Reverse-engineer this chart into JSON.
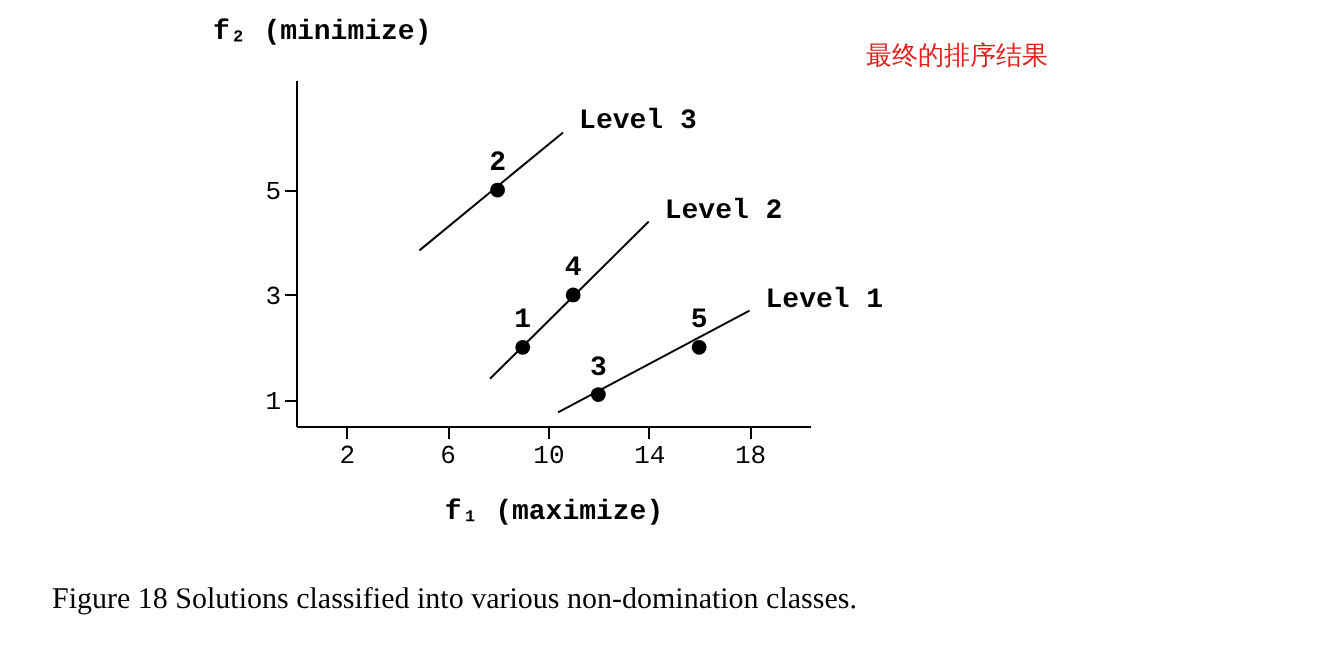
{
  "chart_data": {
    "type": "scatter",
    "title": "Figure 18   Solutions classified into various non-domination classes.",
    "xlabel": "f₁ (maximize)",
    "ylabel": "f₂ (minimize)",
    "xlim": [
      0,
      20.4
    ],
    "ylim": [
      0.5,
      7.1
    ],
    "xticks": [
      2,
      6,
      10,
      14,
      18
    ],
    "yticks": [
      1,
      3,
      5
    ],
    "grid": false,
    "marker": "circle",
    "line_style": "solid",
    "series": [
      {
        "color": "#000000",
        "x": [
          9,
          8,
          12,
          11,
          16
        ],
        "values": [
          2,
          5,
          1.1,
          3,
          2
        ]
      },
      {
        "type": "line",
        "marker": "none",
        "name": "Level 3",
        "color": "#000000",
        "x": [
          4.9,
          10.6
        ],
        "values": [
          3.85,
          6.1
        ]
      },
      {
        "type": "line",
        "marker": "none",
        "name": "Level 2",
        "color": "#000000",
        "x": [
          7.7,
          14.0
        ],
        "values": [
          1.4,
          4.4
        ]
      },
      {
        "type": "line",
        "marker": "none",
        "name": "Level 1",
        "color": "#000000",
        "x": [
          10.4,
          18.0
        ],
        "values": [
          0.76,
          2.7
        ]
      }
    ],
    "annotations": [
      {
        "text": "1",
        "x": 9,
        "y": 2
      },
      {
        "text": "2",
        "x": 8,
        "y": 5
      },
      {
        "text": "3",
        "x": 12,
        "y": 1.1
      },
      {
        "text": "4",
        "x": 11,
        "y": 3
      },
      {
        "text": "5",
        "x": 16,
        "y": 2
      },
      "最终的排序结果"
    ]
  }
}
